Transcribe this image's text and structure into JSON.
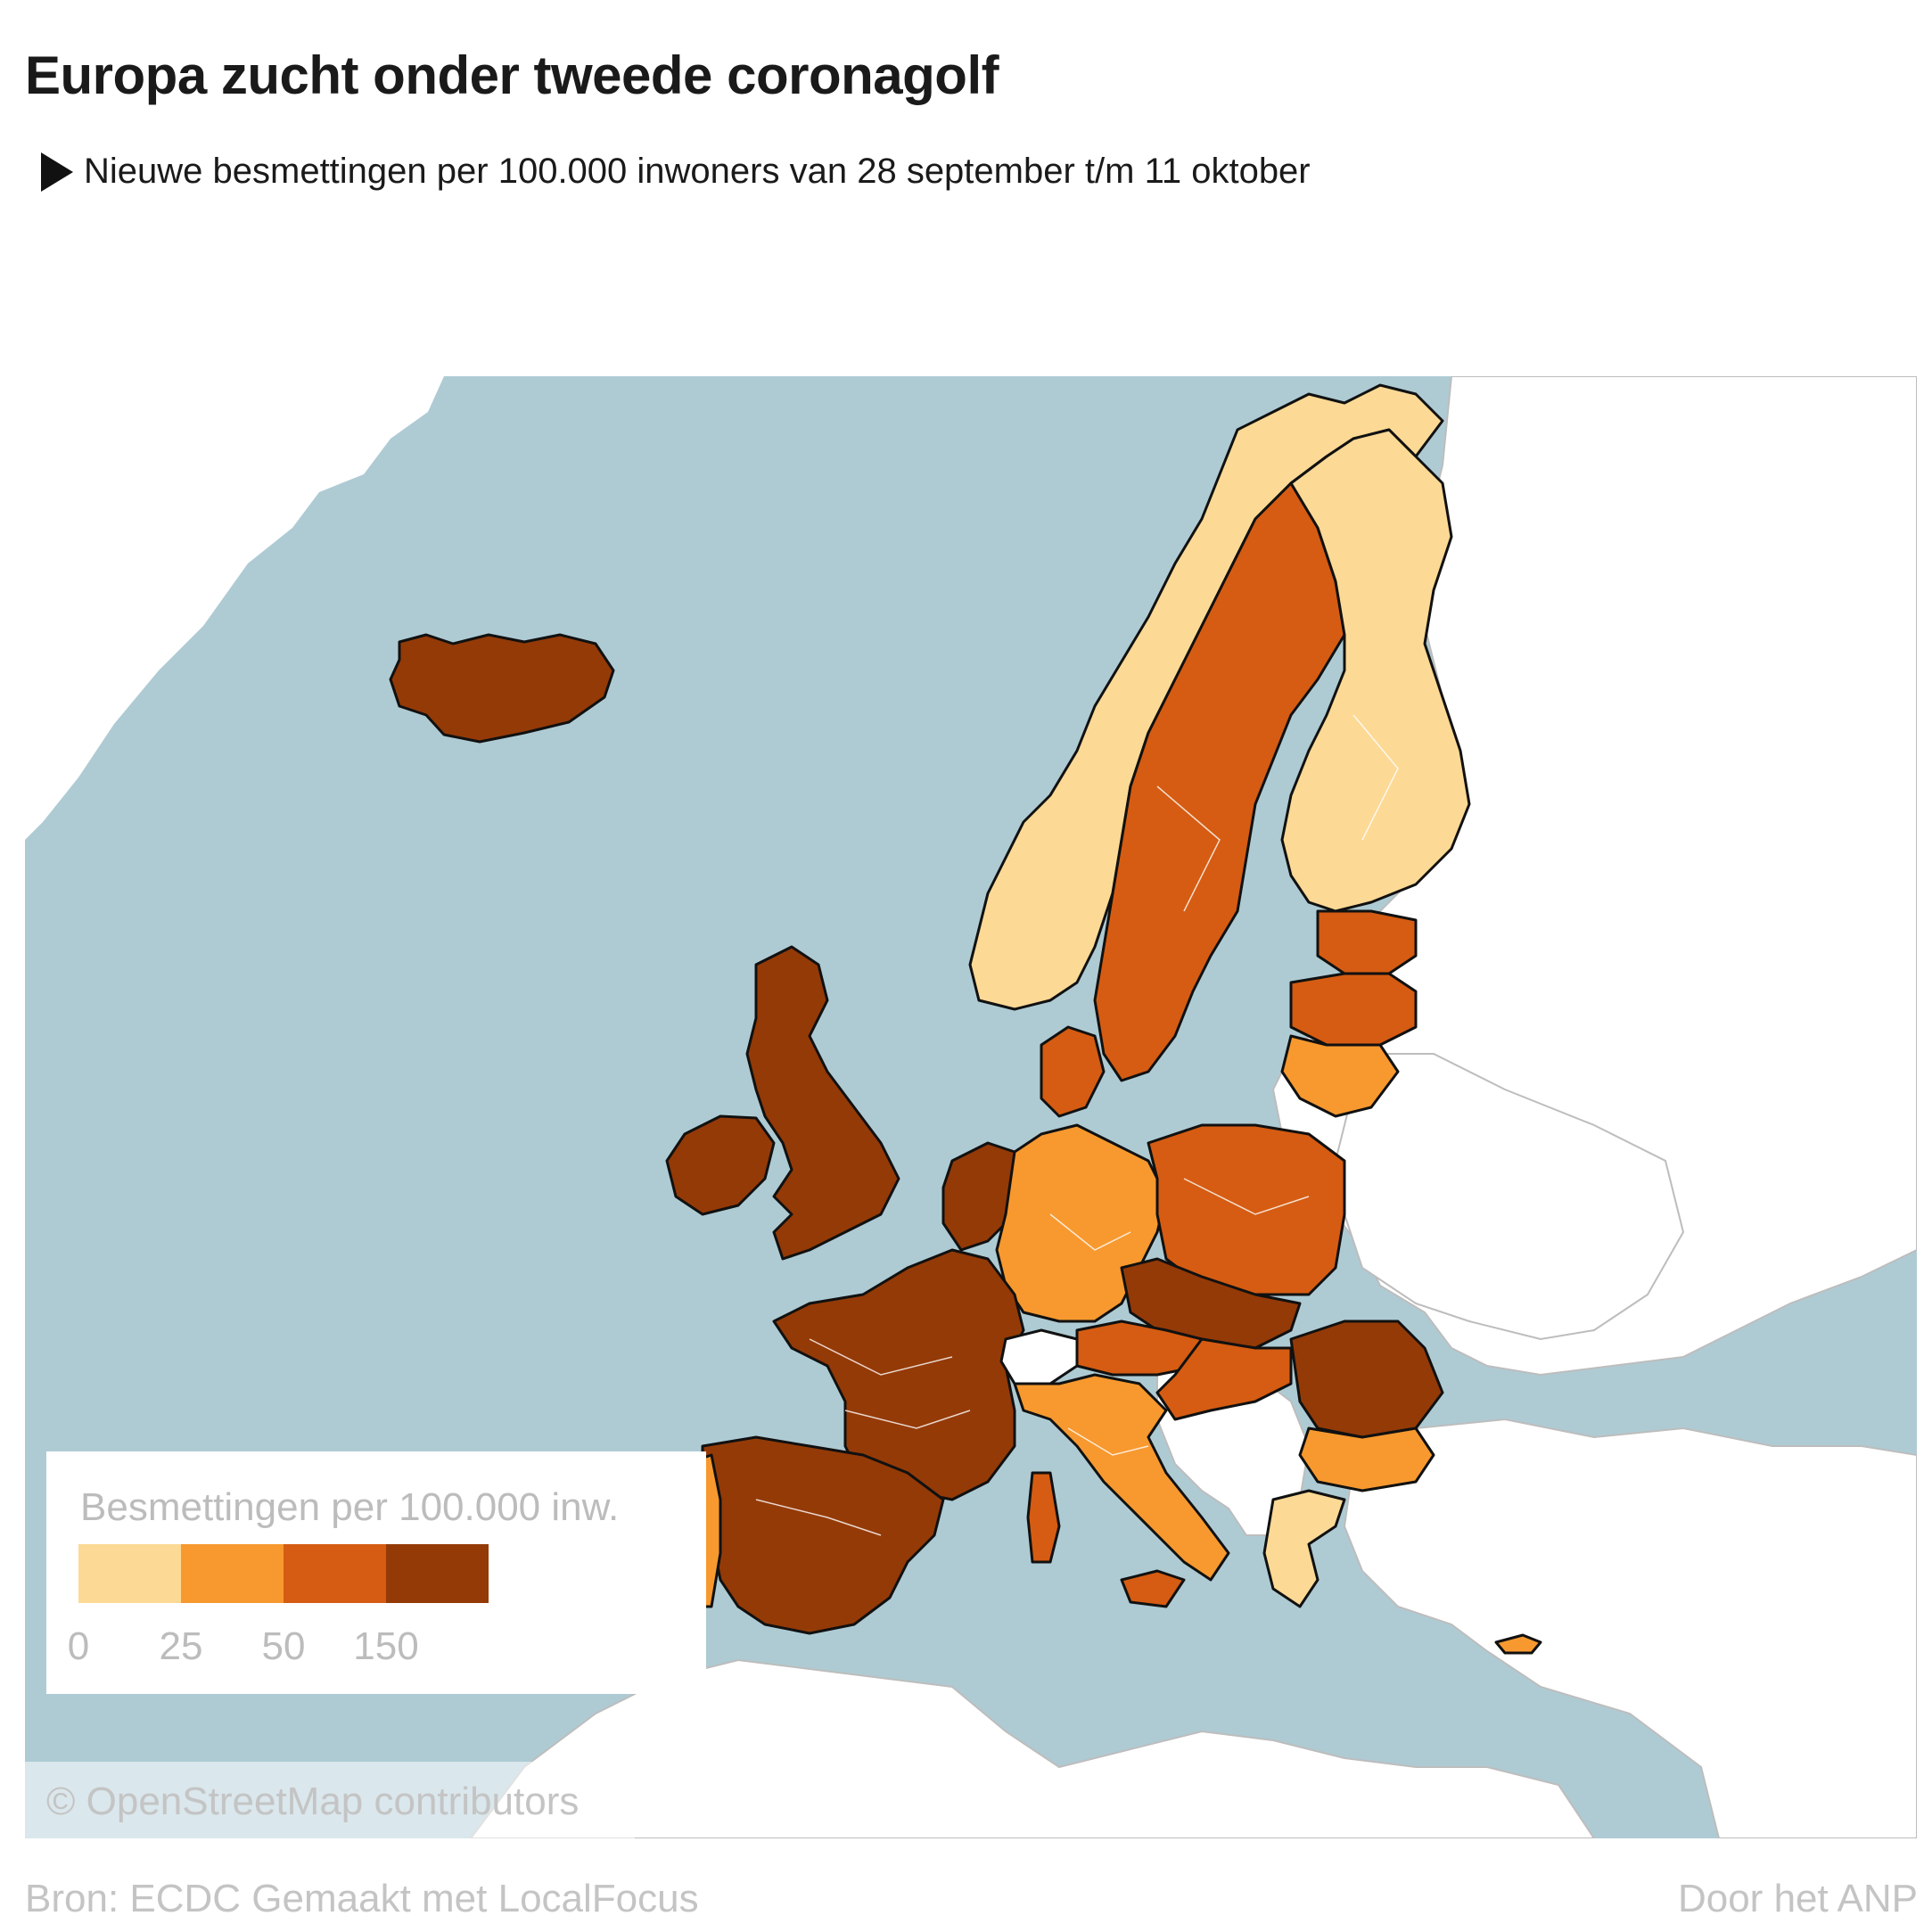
{
  "header": {
    "title": "Europa zucht onder tweede coronagolf",
    "subtitle": "Nieuwe besmettingen per 100.000 inwoners van 28 september t/m 11 oktober"
  },
  "legend": {
    "title": "Besmettingen per 100.000 inw.",
    "ticks": [
      "0",
      "25",
      "50",
      "150"
    ],
    "colors": [
      "#fcd995",
      "#f7992f",
      "#d55c12",
      "#943a07"
    ]
  },
  "map": {
    "sea_color": "#aecbd4",
    "land_color": "#ffffff",
    "border_color": "#111111",
    "regions": [
      {
        "name": "Finland",
        "class": "0-25"
      },
      {
        "name": "Noorwegen",
        "class": "0-25"
      },
      {
        "name": "Zweden",
        "class": "50-150"
      },
      {
        "name": "Estland",
        "class": "50-150"
      },
      {
        "name": "Letland",
        "class": "50-150"
      },
      {
        "name": "Litouwen",
        "class": "25-50"
      },
      {
        "name": "IJsland",
        "class": ">150"
      },
      {
        "name": "Verenigd Koninkrijk",
        "class": ">150"
      },
      {
        "name": "Ierland",
        "class": ">150"
      },
      {
        "name": "Denemarken",
        "class": "50-150"
      },
      {
        "name": "Duitsland",
        "class": "25-50"
      },
      {
        "name": "Polen",
        "class": "50-150"
      },
      {
        "name": "Tsjechië",
        "class": ">150"
      },
      {
        "name": "Frankrijk",
        "class": ">150"
      },
      {
        "name": "Spanje",
        "class": ">150"
      },
      {
        "name": "Portugal",
        "class": "25-50"
      },
      {
        "name": "Italië",
        "class": "25-50"
      },
      {
        "name": "Oostenrijk",
        "class": "50-150"
      },
      {
        "name": "Hongarije",
        "class": "50-150"
      },
      {
        "name": "Roemenië",
        "class": ">150"
      },
      {
        "name": "Bulgarije",
        "class": "25-50"
      },
      {
        "name": "Griekenland",
        "class": "0-25"
      },
      {
        "name": "Cyprus",
        "class": "25-50"
      },
      {
        "name": "Zwitserland",
        "class": "geen data"
      }
    ]
  },
  "attribution": "© OpenStreetMap contributors",
  "footer": {
    "source": "Bron: ECDC  Gemaakt met LocalFocus",
    "credit": "Door het ANP"
  }
}
